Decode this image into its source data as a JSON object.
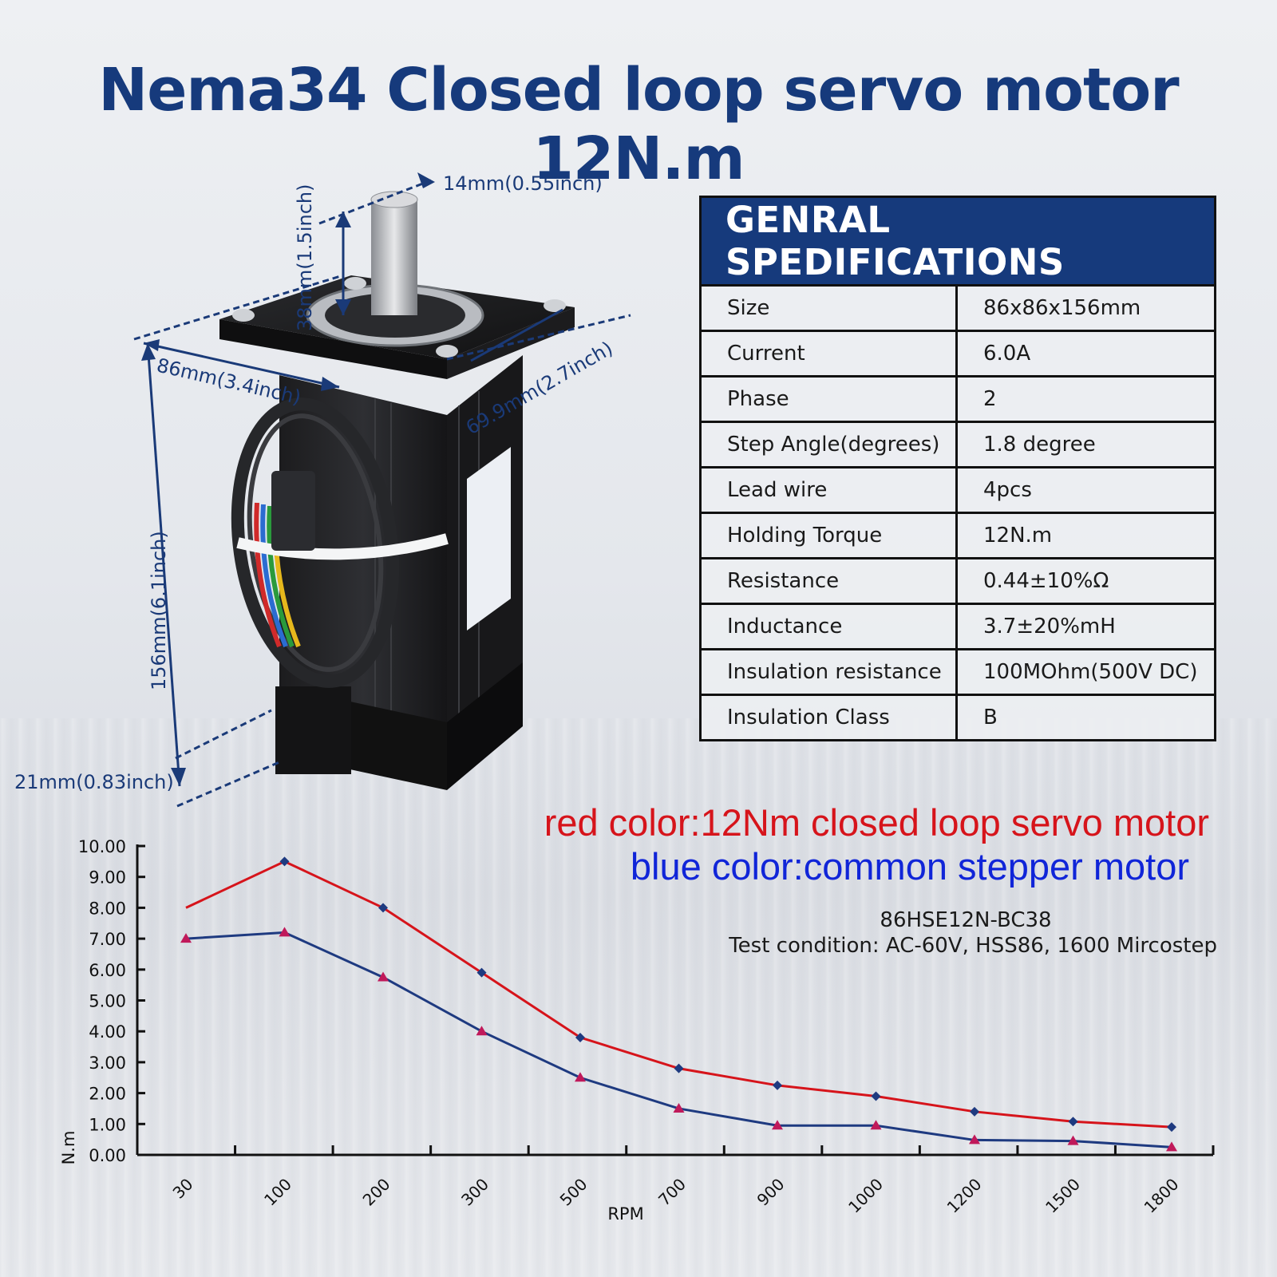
{
  "title": "Nema34 Closed loop servo motor 12N.m",
  "dimensions": {
    "shaft_dia": "14mm(0.55inch)",
    "shaft_len": "38mm(1.5inch)",
    "flange": "86mm(3.4inch)",
    "hole_spacing": "69.9mm(2.7inch)",
    "body_len": "156mm(6.1inch)",
    "encoder_len": "21mm(0.83inch)"
  },
  "spec_table": {
    "title": "GENRAL SPEDIFICATIONS",
    "rows": [
      {
        "key": "Size",
        "value": "86x86x156mm"
      },
      {
        "key": "Current",
        "value": "6.0A"
      },
      {
        "key": "Phase",
        "value": "2"
      },
      {
        "key": "Step Angle(degrees)",
        "value": "1.8 degree"
      },
      {
        "key": "Lead wire",
        "value": "4pcs"
      },
      {
        "key": "Holding Torque",
        "value": "12N.m"
      },
      {
        "key": "Resistance",
        "value": "0.44±10%Ω"
      },
      {
        "key": "Inductance",
        "value": "3.7±20%mH"
      },
      {
        "key": "Insulation resistance",
        "value": "100MOhm(500V DC)"
      },
      {
        "key": "Insulation Class",
        "value": "B"
      }
    ]
  },
  "legend": {
    "red": "red color:12Nm closed loop servo motor",
    "blue": "blue color:common stepper motor"
  },
  "model": "86HSE12N-BC38",
  "test_condition": "Test condition: AC-60V, HSS86, 1600 Mircostep",
  "colors": {
    "red": "#d6141b",
    "blue": "#1e3a80",
    "title": "#163a7c"
  },
  "chart_data": {
    "type": "line",
    "categories": [
      "30",
      "100",
      "200",
      "300",
      "500",
      "700",
      "900",
      "1000",
      "1200",
      "1500",
      "1800"
    ],
    "series": [
      {
        "color": "red",
        "values": [
          8.0,
          9.5,
          8.0,
          5.9,
          3.8,
          2.8,
          2.25,
          1.9,
          1.4,
          1.08,
          0.9
        ]
      },
      {
        "color": "blue",
        "values": [
          7.0,
          7.2,
          5.75,
          4.0,
          2.5,
          1.5,
          0.95,
          0.95,
          0.48,
          0.45,
          0.25
        ]
      }
    ],
    "ylim": [
      0,
      10
    ],
    "yticks": [
      "0.00",
      "1.00",
      "2.00",
      "3.00",
      "4.00",
      "5.00",
      "6.00",
      "7.00",
      "8.00",
      "9.00",
      "10.00"
    ],
    "xlabel": "RPM",
    "ylabel": "N.m"
  }
}
